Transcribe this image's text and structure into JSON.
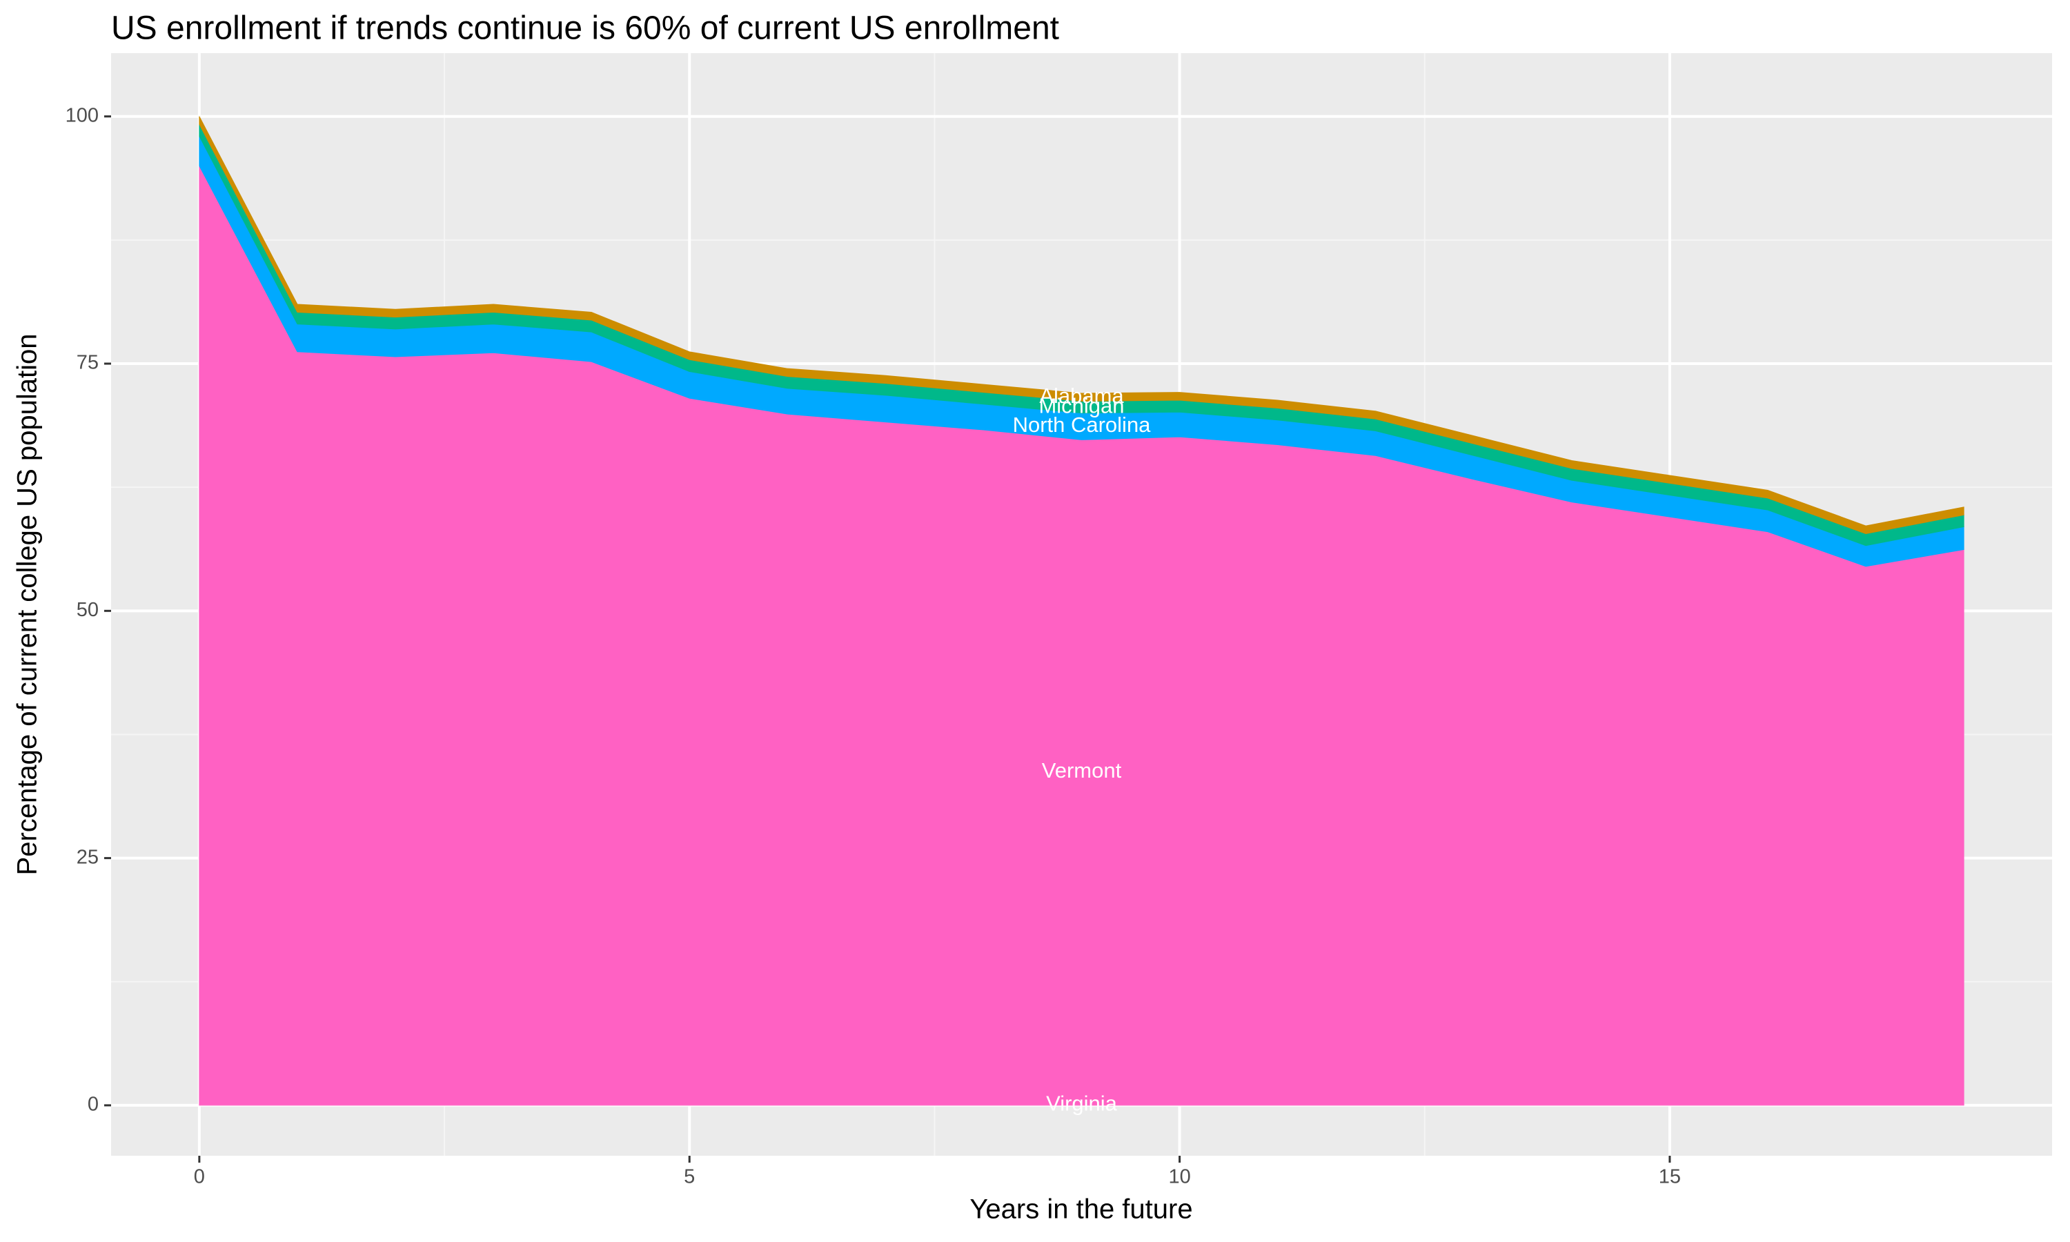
{
  "chart_data": {
    "type": "stacked_area",
    "title": "US enrollment if trends continue is 60% of current US enrollment",
    "x_label": "Years in the future",
    "y_label": "Percentage of current college US population",
    "x": [
      0,
      1,
      2,
      3,
      4,
      5,
      6,
      7,
      8,
      9,
      10,
      11,
      12,
      13,
      14,
      15,
      16,
      17,
      18
    ],
    "series": [
      {
        "name": "Virginia",
        "color": "#ff6ec7",
        "values": [
          0.1,
          0.1,
          0.1,
          0.1,
          0.1,
          0.1,
          0.1,
          0.1,
          0.1,
          0.1,
          0.1,
          0.1,
          0.1,
          0.1,
          0.1,
          0.1,
          0.1,
          0.1,
          0.1
        ]
      },
      {
        "name": "Vermont",
        "color": "#ff61c3",
        "values": [
          94.9,
          76.1,
          75.6,
          76.0,
          75.1,
          71.4,
          69.8,
          69.0,
          68.2,
          67.2,
          67.5,
          66.7,
          65.6,
          63.2,
          60.9,
          59.4,
          57.9,
          54.4,
          56.1
        ]
      },
      {
        "name": "North Carolina",
        "color": "#00a9ff",
        "values": [
          3.0,
          2.8,
          2.8,
          2.9,
          3.0,
          2.7,
          2.6,
          2.7,
          2.6,
          2.7,
          2.5,
          2.5,
          2.5,
          2.4,
          2.2,
          2.2,
          2.2,
          2.1,
          2.3
        ]
      },
      {
        "name": "Michigan",
        "color": "#00b88a",
        "values": [
          1.2,
          1.2,
          1.2,
          1.2,
          1.2,
          1.2,
          1.2,
          1.2,
          1.2,
          1.2,
          1.2,
          1.2,
          1.2,
          1.2,
          1.2,
          1.2,
          1.2,
          1.2,
          1.2
        ]
      },
      {
        "name": "Alabama",
        "color": "#cd8d00",
        "values": [
          0.8,
          0.8,
          0.8,
          0.8,
          0.8,
          0.8,
          0.8,
          0.8,
          0.8,
          0.8,
          0.8,
          0.8,
          0.8,
          0.8,
          0.8,
          0.8,
          0.8,
          0.8,
          0.8
        ]
      }
    ],
    "label_x": 9,
    "xlim": [
      -0.9,
      18.9
    ],
    "xticks": [
      0,
      5,
      10,
      15
    ],
    "ylim": [
      -5.1,
      106.4
    ],
    "yticks": [
      0,
      25,
      50,
      75,
      100
    ],
    "grid": true
  }
}
